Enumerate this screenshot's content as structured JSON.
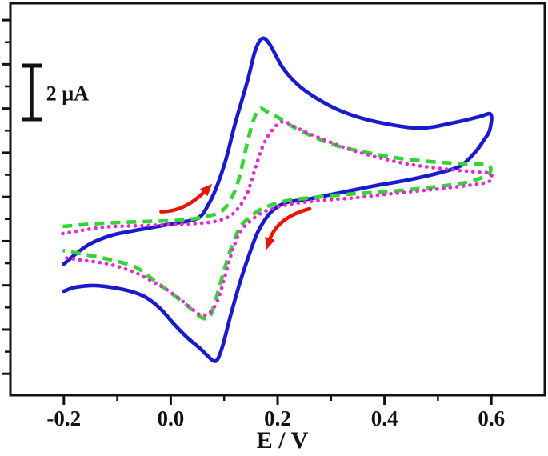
{
  "figure": {
    "background_color": "#ffffff",
    "frame_color": "#121212",
    "description": "Cyclic voltammograms: three overlaid CV loops (solid blue, dashed green, dotted magenta) with red scan-direction arrows and a 2 µA scale bar"
  },
  "chart_data": {
    "type": "line",
    "chart_kind": "cyclic_voltammetry",
    "title": "",
    "xlabel": "E / V",
    "ylabel": "",
    "grid": false,
    "legend": "none",
    "x_axis": {
      "lim": [
        -0.3,
        0.7
      ],
      "major_ticks": [
        -0.2,
        0.0,
        0.2,
        0.4,
        0.6
      ],
      "tick_labels": [
        "-0.2",
        "0.0",
        "0.2",
        "0.4",
        "0.6"
      ],
      "minor_ticks": [
        -0.1,
        0.1,
        0.3,
        0.5
      ]
    },
    "y_axis": {
      "lim_uA": [
        -6.3,
        8.33
      ],
      "labels_visible": false,
      "major_tick_start_uA": 7.7,
      "major_tick_step_uA": 1.65,
      "major_tick_count": 9
    },
    "scale_bar": {
      "label": "2 µA",
      "span_uA": 2,
      "top_uA": 6.0,
      "bottom_uA": 4.0,
      "x_V": -0.26
    },
    "scan_arrows": [
      {
        "name": "forward-scan-arrow",
        "color": "#e81500",
        "from_V_uA": [
          -0.018,
          0.55
        ],
        "ctrl_V_uA": [
          0.027,
          0.55
        ],
        "to_V_uA": [
          0.066,
          1.35
        ]
      },
      {
        "name": "reverse-scan-arrow",
        "color": "#e81500",
        "from_V_uA": [
          0.26,
          0.66
        ],
        "ctrl_V_uA": [
          0.198,
          0.33
        ],
        "to_V_uA": [
          0.184,
          -0.56
        ]
      }
    ],
    "series": [
      {
        "name": "scan 1 - solid blue (largest peak currents)",
        "color": "#1a1acd",
        "line_style": "solid",
        "anodic_peak": {
          "E_V": 0.17,
          "i_uA": 7.0
        },
        "cathodic_peak": {
          "E_V": 0.08,
          "i_uA": -5.0
        },
        "forward_E_i": [
          [
            -0.2,
            -1.4
          ],
          [
            -0.155,
            -0.7
          ],
          [
            -0.11,
            -0.33
          ],
          [
            -0.06,
            -0.13
          ],
          [
            0.0,
            0.09
          ],
          [
            0.05,
            0.3
          ],
          [
            0.07,
            0.8
          ],
          [
            0.085,
            1.43
          ],
          [
            0.103,
            2.48
          ],
          [
            0.12,
            3.8
          ],
          [
            0.144,
            5.46
          ],
          [
            0.158,
            6.55
          ],
          [
            0.171,
            7.01
          ],
          [
            0.185,
            6.8
          ],
          [
            0.21,
            5.91
          ],
          [
            0.24,
            5.25
          ],
          [
            0.278,
            4.72
          ],
          [
            0.323,
            4.27
          ],
          [
            0.383,
            3.91
          ],
          [
            0.465,
            3.67
          ],
          [
            0.532,
            3.88
          ],
          [
            0.577,
            4.09
          ],
          [
            0.599,
            4.18
          ]
        ],
        "return_E_i": [
          [
            0.597,
            3.6
          ],
          [
            0.586,
            3.22
          ],
          [
            0.57,
            2.78
          ],
          [
            0.543,
            2.27
          ],
          [
            0.503,
            2.0
          ],
          [
            0.443,
            1.73
          ],
          [
            0.383,
            1.52
          ],
          [
            0.323,
            1.28
          ],
          [
            0.263,
            1.04
          ],
          [
            0.218,
            0.9
          ],
          [
            0.193,
            0.63
          ],
          [
            0.176,
            0.24
          ],
          [
            0.161,
            -0.3
          ],
          [
            0.146,
            -1.1
          ],
          [
            0.131,
            -2.0
          ],
          [
            0.113,
            -3.25
          ],
          [
            0.098,
            -4.4
          ],
          [
            0.088,
            -4.95
          ],
          [
            0.08,
            -5.02
          ],
          [
            0.07,
            -4.85
          ],
          [
            0.054,
            -4.54
          ],
          [
            0.031,
            -4.15
          ],
          [
            0.006,
            -3.64
          ],
          [
            -0.021,
            -3.04
          ],
          [
            -0.051,
            -2.6
          ],
          [
            -0.088,
            -2.36
          ],
          [
            -0.141,
            -2.21
          ],
          [
            -0.178,
            -2.27
          ],
          [
            -0.2,
            -2.42
          ]
        ]
      },
      {
        "name": "scan 2 - dashed green",
        "color": "#35d435",
        "line_style": "dashed",
        "anodic_peak": {
          "E_V": 0.166,
          "i_uA": 4.4
        },
        "cathodic_peak": {
          "E_V": 0.061,
          "i_uA": -3.4
        },
        "forward_E_i": [
          [
            -0.202,
            0.0
          ],
          [
            -0.126,
            0.12
          ],
          [
            -0.051,
            0.18
          ],
          [
            0.024,
            0.24
          ],
          [
            0.072,
            0.39
          ],
          [
            0.099,
            0.63
          ],
          [
            0.117,
            1.19
          ],
          [
            0.129,
            1.88
          ],
          [
            0.141,
            2.93
          ],
          [
            0.154,
            3.91
          ],
          [
            0.166,
            4.39
          ],
          [
            0.181,
            4.27
          ],
          [
            0.204,
            4.03
          ],
          [
            0.233,
            3.67
          ],
          [
            0.271,
            3.31
          ],
          [
            0.311,
            3.01
          ],
          [
            0.361,
            2.78
          ],
          [
            0.428,
            2.54
          ],
          [
            0.503,
            2.39
          ],
          [
            0.563,
            2.33
          ],
          [
            0.595,
            2.27
          ]
        ],
        "return_E_i": [
          [
            0.594,
            1.94
          ],
          [
            0.552,
            1.64
          ],
          [
            0.487,
            1.46
          ],
          [
            0.413,
            1.31
          ],
          [
            0.345,
            1.22
          ],
          [
            0.278,
            1.1
          ],
          [
            0.218,
            0.96
          ],
          [
            0.174,
            0.69
          ],
          [
            0.147,
            0.33
          ],
          [
            0.129,
            -0.06
          ],
          [
            0.114,
            -0.75
          ],
          [
            0.099,
            -1.7
          ],
          [
            0.084,
            -2.75
          ],
          [
            0.073,
            -3.37
          ],
          [
            0.061,
            -3.43
          ],
          [
            0.046,
            -3.22
          ],
          [
            0.024,
            -2.84
          ],
          [
            -0.006,
            -2.39
          ],
          [
            -0.036,
            -1.94
          ],
          [
            -0.066,
            -1.52
          ],
          [
            -0.111,
            -1.25
          ],
          [
            -0.163,
            -1.04
          ],
          [
            -0.202,
            -0.9
          ]
        ]
      },
      {
        "name": "scan 3 - dotted magenta",
        "color": "#e32ad4",
        "line_style": "dotted",
        "anodic_peak": {
          "E_V": 0.211,
          "i_uA": 3.9
        },
        "cathodic_peak": {
          "E_V": 0.057,
          "i_uA": -3.3
        },
        "forward_E_i": [
          [
            -0.202,
            -0.27
          ],
          [
            -0.126,
            -0.03
          ],
          [
            -0.051,
            0.03
          ],
          [
            0.031,
            0.09
          ],
          [
            0.081,
            0.18
          ],
          [
            0.111,
            0.39
          ],
          [
            0.129,
            0.75
          ],
          [
            0.144,
            1.28
          ],
          [
            0.156,
            2.03
          ],
          [
            0.174,
            3.07
          ],
          [
            0.193,
            3.67
          ],
          [
            0.211,
            3.91
          ],
          [
            0.231,
            3.73
          ],
          [
            0.256,
            3.49
          ],
          [
            0.289,
            3.22
          ],
          [
            0.331,
            2.9
          ],
          [
            0.383,
            2.6
          ],
          [
            0.443,
            2.33
          ],
          [
            0.51,
            2.15
          ],
          [
            0.57,
            2.03
          ],
          [
            0.598,
            1.97
          ]
        ],
        "return_E_i": [
          [
            0.595,
            1.67
          ],
          [
            0.552,
            1.52
          ],
          [
            0.487,
            1.37
          ],
          [
            0.413,
            1.22
          ],
          [
            0.345,
            1.07
          ],
          [
            0.278,
            0.96
          ],
          [
            0.218,
            0.81
          ],
          [
            0.174,
            0.54
          ],
          [
            0.15,
            0.21
          ],
          [
            0.132,
            -0.15
          ],
          [
            0.117,
            -0.81
          ],
          [
            0.103,
            -1.76
          ],
          [
            0.088,
            -2.75
          ],
          [
            0.073,
            -3.22
          ],
          [
            0.057,
            -3.31
          ],
          [
            0.039,
            -3.07
          ],
          [
            0.016,
            -2.69
          ],
          [
            -0.01,
            -2.33
          ],
          [
            -0.039,
            -2.0
          ],
          [
            -0.073,
            -1.67
          ],
          [
            -0.118,
            -1.4
          ],
          [
            -0.17,
            -1.25
          ],
          [
            -0.202,
            -1.16
          ]
        ]
      }
    ]
  }
}
